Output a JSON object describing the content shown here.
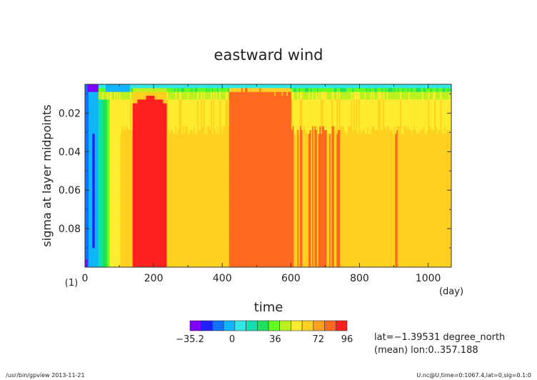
{
  "chart_data": {
    "type": "heatmap",
    "title": "eastward wind",
    "xlabel": "time",
    "x_unit": "(day)",
    "ylabel": "sigma at layer midpoints",
    "y_unit": "(1)",
    "xlim": [
      0,
      1067.4
    ],
    "ylim": [
      0.005,
      0.1
    ],
    "y_inverted": true,
    "x_ticks": [
      0,
      200,
      400,
      600,
      800,
      1000
    ],
    "y_ticks": [
      0.02,
      0.04,
      0.06,
      0.08
    ],
    "x_tick_labels": [
      "0",
      "200",
      "400",
      "600",
      "800",
      "1000"
    ],
    "y_tick_labels": [
      "0.02",
      "0.04",
      "0.06",
      "0.08"
    ],
    "colorbar": {
      "labels": [
        "−35.2",
        "0",
        "36",
        "72",
        "96"
      ],
      "label_values": [
        -35.2,
        0,
        36,
        72,
        96
      ],
      "colors": [
        "#7f00ff",
        "#2020ff",
        "#1070ff",
        "#10b4ff",
        "#30e8e8",
        "#10e0b0",
        "#20e060",
        "#60ff20",
        "#b8f020",
        "#ffec30",
        "#ffd020",
        "#ffa020",
        "#ff6a20",
        "#ff2020"
      ],
      "min": -35.2,
      "max": 96
    },
    "field_summary": [
      {
        "time_range": [
          0,
          8
        ],
        "description": "cyan near top, deep blue band at bottom edge",
        "value_range": [
          -10,
          10
        ]
      },
      {
        "time_range": [
          8,
          40
        ],
        "description": "light blue column, negative winds",
        "value_range": [
          -30,
          5
        ]
      },
      {
        "time_range": [
          40,
          140
        ],
        "description": "transition green to yellow",
        "value_range": [
          10,
          60
        ]
      },
      {
        "time_range": [
          140,
          240
        ],
        "description": "red maximum below sigma 0.012",
        "value_range": [
          80,
          96
        ]
      },
      {
        "time_range": [
          240,
          420
        ],
        "description": "yellow with green near top",
        "value_range": [
          40,
          72
        ]
      },
      {
        "time_range": [
          420,
          600
        ],
        "description": "orange maximum below sigma 0.008",
        "value_range": [
          72,
          90
        ]
      },
      {
        "time_range": [
          600,
          770
        ],
        "description": "yellow with orange streaks",
        "value_range": [
          60,
          80
        ]
      },
      {
        "time_range": [
          770,
          1067.4
        ],
        "description": "mostly yellow, green near top",
        "value_range": [
          40,
          72
        ]
      }
    ],
    "grid": false
  },
  "info": {
    "lat": "lat=−1.39531 degree_north",
    "lon": "(mean) lon:0..357.188"
  },
  "footer": {
    "left": "/usr/bin/gpview   2013-11-21",
    "right": "U.nc@U,time=0:1067.4,lat=0,sig=0.1:0"
  }
}
